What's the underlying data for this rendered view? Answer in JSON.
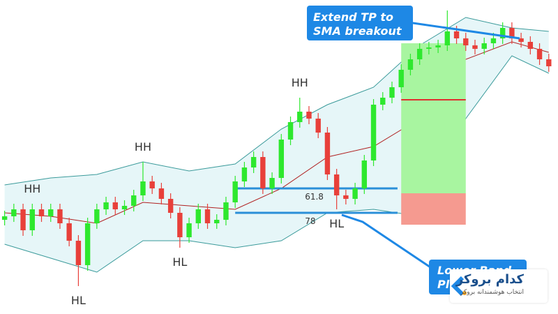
{
  "chart_data": {
    "type": "candlestick",
    "xlim": [
      -0.5,
      60
    ],
    "ylim": [
      0,
      450
    ],
    "up_color": "#2ee82e",
    "down_color": "#e8403a",
    "open": [
      135,
      140,
      150,
      120,
      150,
      140,
      150,
      130,
      105,
      70,
      130,
      150,
      160,
      150,
      155,
      170,
      190,
      180,
      165,
      145,
      110,
      130,
      150,
      130,
      135,
      160,
      190,
      210,
      225,
      180,
      195,
      250,
      275,
      290,
      280,
      260,
      200,
      170,
      165,
      180,
      220,
      300,
      310,
      325,
      350,
      365,
      380,
      382,
      385,
      405,
      395,
      385,
      380,
      388,
      395,
      410,
      395,
      390,
      380,
      365
    ],
    "high": [
      148,
      158,
      158,
      158,
      158,
      158,
      158,
      138,
      113,
      138,
      158,
      168,
      168,
      163,
      178,
      218,
      198,
      188,
      173,
      153,
      138,
      158,
      158,
      143,
      168,
      198,
      218,
      233,
      233,
      203,
      258,
      283,
      310,
      298,
      288,
      268,
      208,
      178,
      188,
      228,
      308,
      318,
      333,
      358,
      373,
      388,
      390,
      393,
      435,
      413,
      403,
      393,
      396,
      403,
      418,
      418,
      403,
      398,
      388,
      373
    ],
    "low": [
      127,
      132,
      112,
      112,
      132,
      132,
      122,
      97,
      40,
      62,
      122,
      142,
      142,
      142,
      147,
      162,
      172,
      157,
      137,
      95,
      102,
      122,
      122,
      122,
      127,
      152,
      182,
      202,
      172,
      172,
      187,
      242,
      267,
      272,
      252,
      192,
      150,
      157,
      157,
      172,
      212,
      292,
      302,
      317,
      342,
      357,
      372,
      374,
      377,
      387,
      377,
      372,
      372,
      380,
      387,
      387,
      382,
      372,
      357,
      347
    ],
    "close": [
      140,
      150,
      120,
      150,
      140,
      150,
      130,
      105,
      70,
      130,
      150,
      160,
      150,
      155,
      170,
      190,
      180,
      165,
      145,
      110,
      130,
      150,
      130,
      135,
      160,
      190,
      210,
      225,
      180,
      195,
      250,
      275,
      290,
      280,
      260,
      200,
      170,
      165,
      180,
      220,
      300,
      310,
      325,
      350,
      365,
      380,
      382,
      385,
      405,
      395,
      385,
      380,
      388,
      395,
      410,
      395,
      390,
      380,
      365,
      355
    ],
    "bands": {
      "x": [
        0,
        5,
        10,
        15,
        20,
        25,
        30,
        35,
        40,
        45,
        50,
        55,
        59
      ],
      "upper": [
        185,
        195,
        200,
        218,
        205,
        215,
        265,
        300,
        325,
        385,
        425,
        410,
        405
      ],
      "middle": [
        145,
        140,
        130,
        160,
        155,
        150,
        180,
        225,
        240,
        280,
        365,
        390,
        375
      ],
      "lower": [
        100,
        80,
        60,
        105,
        105,
        95,
        105,
        145,
        150,
        140,
        280,
        370,
        345
      ],
      "band_color": "#3a9a9a",
      "fill_color": "#e6f6f8",
      "middle_color": "#b02020"
    },
    "fib_levels": [
      {
        "name": "61.8",
        "price": 180,
        "x_start": 25,
        "x_end": 42.6
      },
      {
        "name": "78",
        "price": 145,
        "x_start": 25,
        "x_end": 42.6
      }
    ],
    "fib_color": "#2a8fd8",
    "position": {
      "x_start": 43,
      "x_end": 50,
      "target": 388,
      "entry": 173,
      "stop": 128,
      "tp_line": 307,
      "profit_color": "#a8f5a0",
      "loss_color": "#f59a90",
      "line_color": "#e03030"
    },
    "annotations": [
      {
        "text": "HH",
        "candle": 3,
        "side": "above"
      },
      {
        "text": "HH",
        "candle": 15,
        "side": "above"
      },
      {
        "text": "HH",
        "candle": 32,
        "side": "above"
      },
      {
        "text": "HL",
        "candle": 8,
        "side": "below"
      },
      {
        "text": "HL",
        "candle": 19,
        "side": "below"
      },
      {
        "text": "HL",
        "candle": 36,
        "side": "below"
      }
    ]
  },
  "callouts": [
    {
      "lines": [
        "Extend TP to",
        "SMA breakout"
      ]
    },
    {
      "lines": [
        "Lower Band",
        "Pl"
      ]
    }
  ],
  "logo": {
    "title": "کدام بروکر",
    "subtitle": "انتخاب هوشمندانه بروکر"
  }
}
